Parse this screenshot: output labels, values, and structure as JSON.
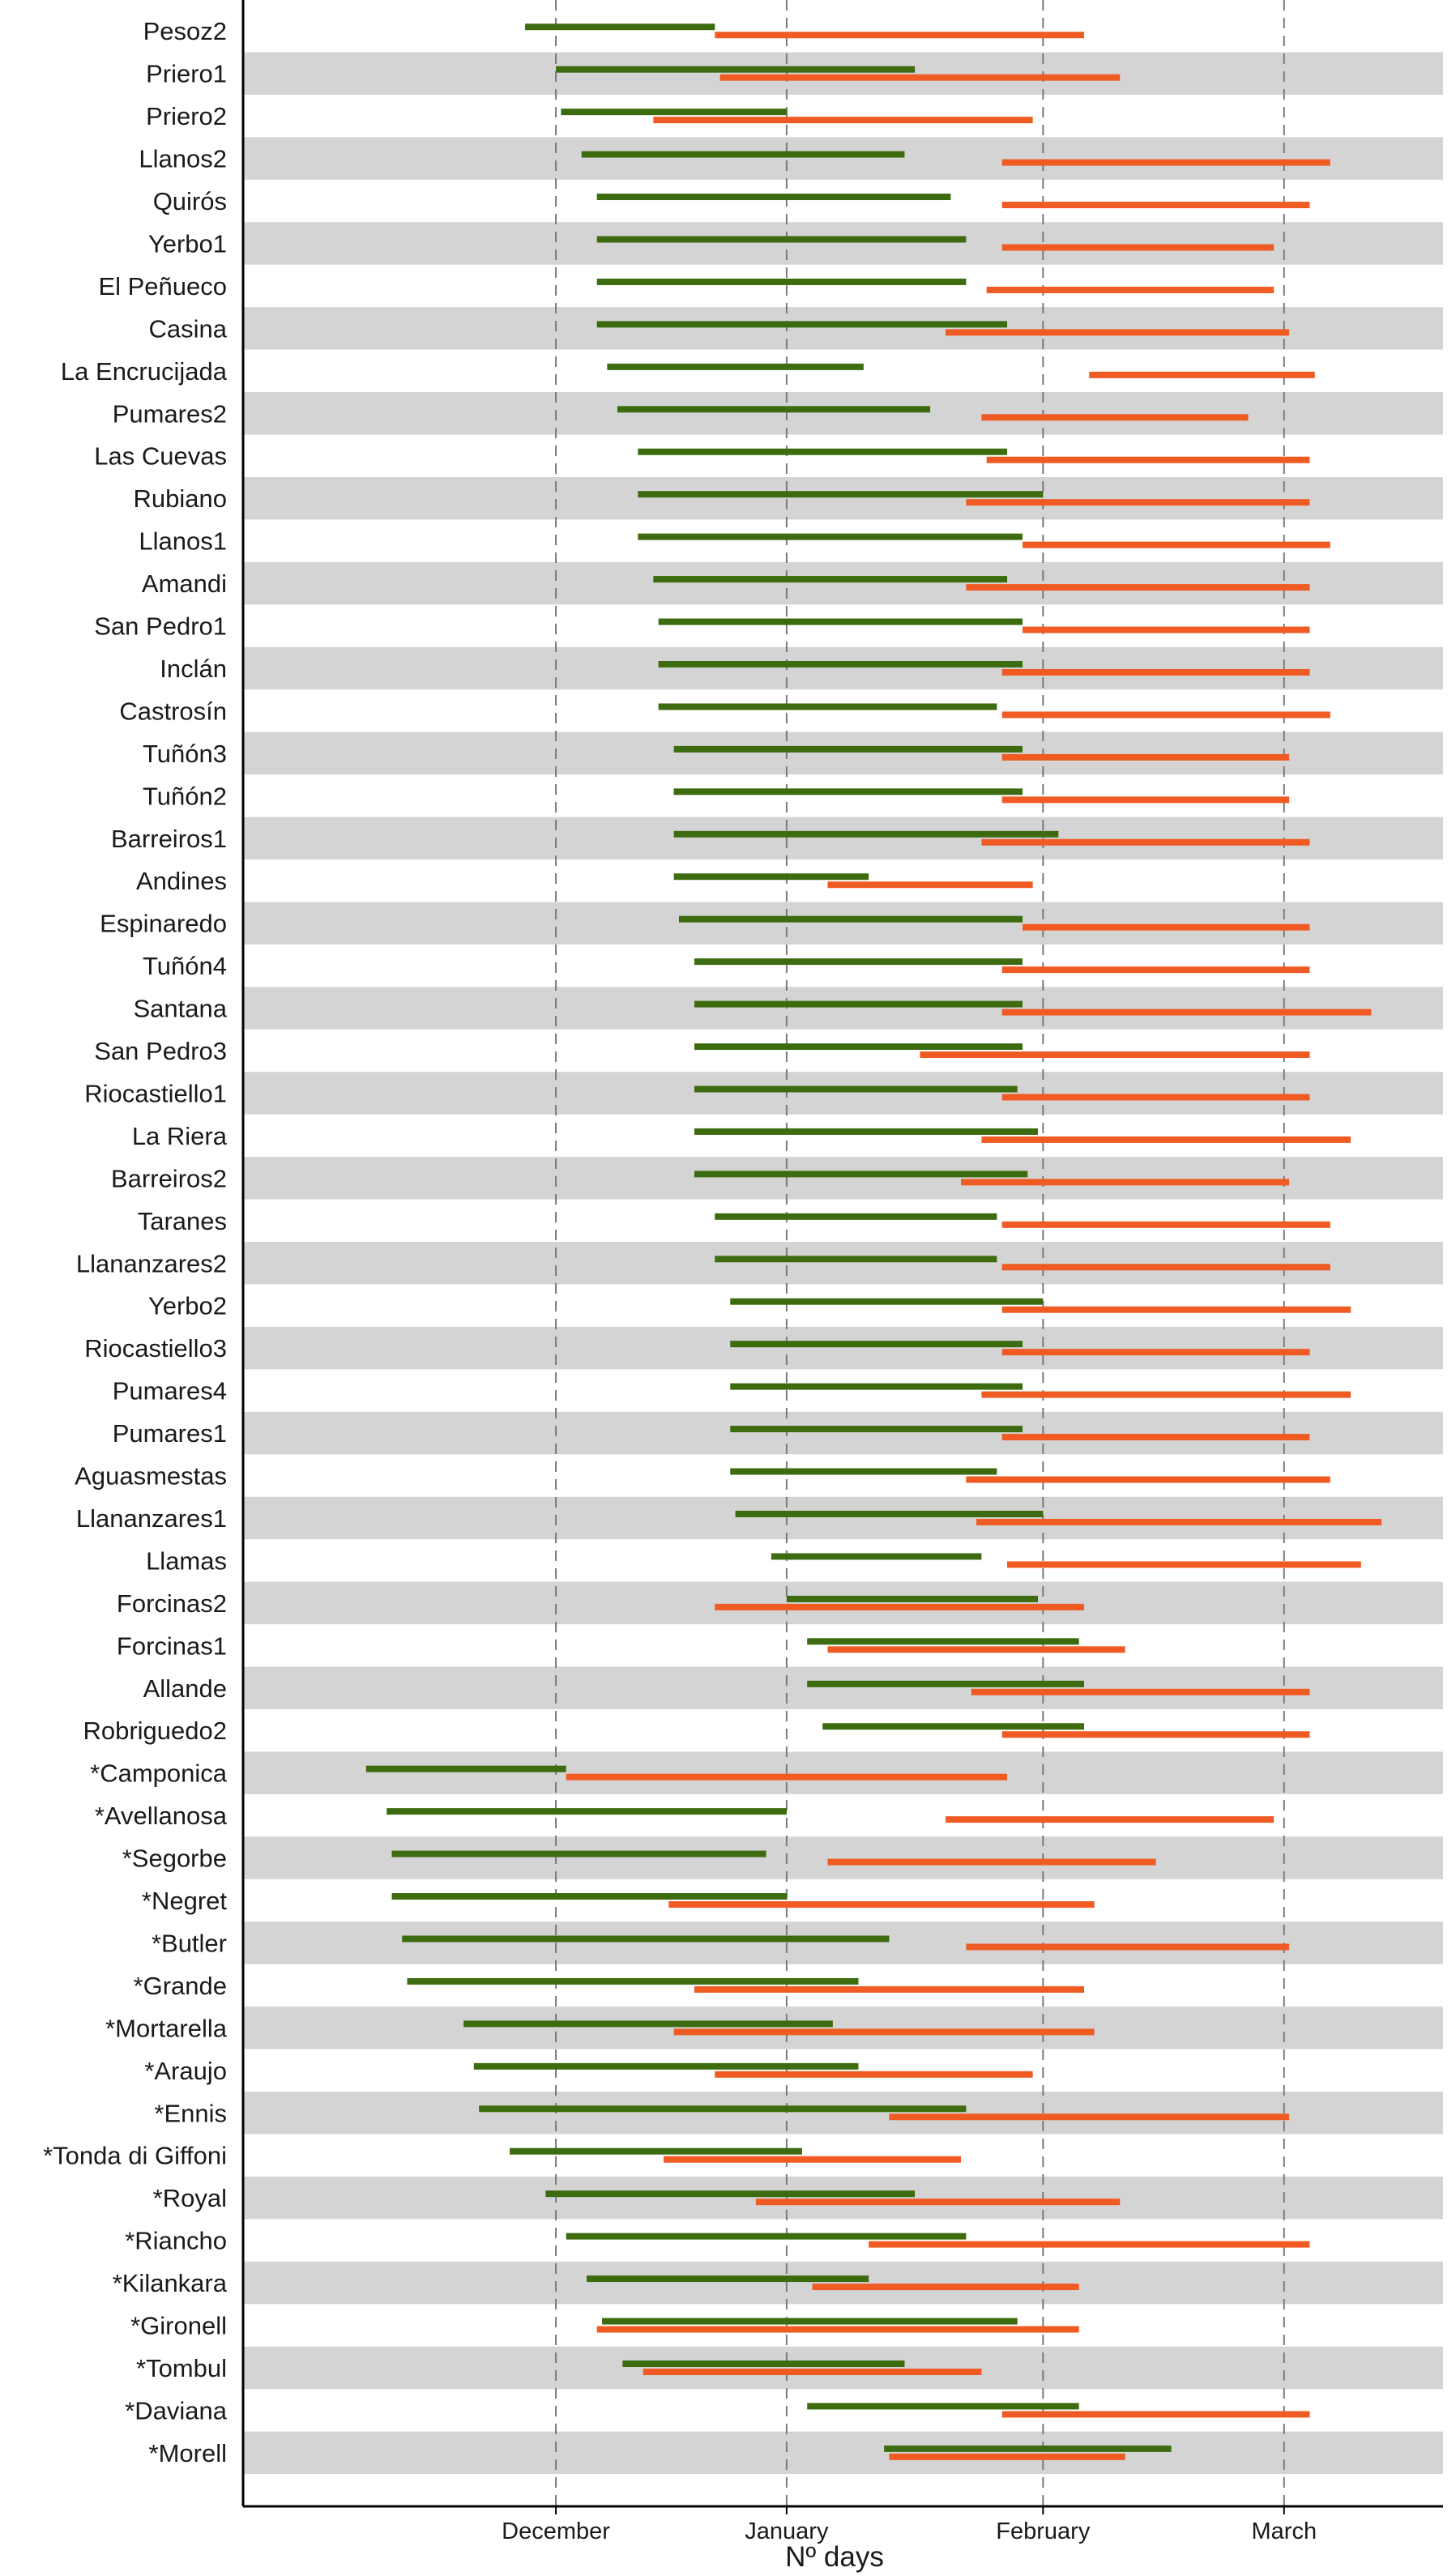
{
  "chart_data": {
    "type": "range-bar",
    "title": "",
    "xlabel": "Nº days",
    "ylabel": "",
    "xlim": [
      -31,
      203
    ],
    "x_unit": "days from 1 November",
    "grid": "vertical dashed at month ticks",
    "row_shading": "alternating grey bands",
    "ticks": [
      {
        "label": "December",
        "value": 30
      },
      {
        "label": "January",
        "value": 75
      },
      {
        "label": "February",
        "value": 125
      },
      {
        "label": "March",
        "value": 172
      }
    ],
    "series": [
      {
        "name": "green",
        "color": "#3d6b0f"
      },
      {
        "name": "orange",
        "color": "#f05a23"
      }
    ],
    "rows": [
      {
        "label": "Pesoz2",
        "green": [
          24,
          61
        ],
        "orange": [
          61,
          133
        ]
      },
      {
        "label": "Priero1",
        "green": [
          30,
          100
        ],
        "orange": [
          62,
          140
        ]
      },
      {
        "label": "Priero2",
        "green": [
          31,
          75
        ],
        "orange": [
          49,
          123
        ]
      },
      {
        "label": "Llanos2",
        "green": [
          35,
          98
        ],
        "orange": [
          117,
          181
        ]
      },
      {
        "label": "Quirós",
        "green": [
          38,
          107
        ],
        "orange": [
          117,
          177
        ]
      },
      {
        "label": "Yerbo1",
        "green": [
          38,
          110
        ],
        "orange": [
          117,
          170
        ]
      },
      {
        "label": "El Peñueco",
        "green": [
          38,
          110
        ],
        "orange": [
          114,
          170
        ]
      },
      {
        "label": "Casina",
        "green": [
          38,
          118
        ],
        "orange": [
          106,
          173
        ]
      },
      {
        "label": "La Encrucijada",
        "green": [
          40,
          90
        ],
        "orange": [
          134,
          178
        ]
      },
      {
        "label": "Pumares2",
        "green": [
          42,
          103
        ],
        "orange": [
          113,
          165
        ]
      },
      {
        "label": "Las Cuevas",
        "green": [
          46,
          118
        ],
        "orange": [
          114,
          177
        ]
      },
      {
        "label": "Rubiano",
        "green": [
          46,
          125
        ],
        "orange": [
          110,
          177
        ]
      },
      {
        "label": "Llanos1",
        "green": [
          46,
          121
        ],
        "orange": [
          121,
          181
        ]
      },
      {
        "label": "Amandi",
        "green": [
          49,
          118
        ],
        "orange": [
          110,
          177
        ]
      },
      {
        "label": "San Pedro1",
        "green": [
          50,
          121
        ],
        "orange": [
          121,
          177
        ]
      },
      {
        "label": "Inclán",
        "green": [
          50,
          121
        ],
        "orange": [
          117,
          177
        ]
      },
      {
        "label": "Castrosín",
        "green": [
          50,
          116
        ],
        "orange": [
          117,
          181
        ]
      },
      {
        "label": "Tuñón3",
        "green": [
          53,
          121
        ],
        "orange": [
          117,
          173
        ]
      },
      {
        "label": "Tuñón2",
        "green": [
          53,
          121
        ],
        "orange": [
          117,
          173
        ]
      },
      {
        "label": "Barreiros1",
        "green": [
          53,
          128
        ],
        "orange": [
          113,
          177
        ]
      },
      {
        "label": "Andines",
        "green": [
          53,
          91
        ],
        "orange": [
          83,
          123
        ]
      },
      {
        "label": "Espinaredo",
        "green": [
          54,
          121
        ],
        "orange": [
          121,
          177
        ]
      },
      {
        "label": "Tuñón4",
        "green": [
          57,
          121
        ],
        "orange": [
          117,
          177
        ]
      },
      {
        "label": "Santana",
        "green": [
          57,
          121
        ],
        "orange": [
          117,
          189
        ]
      },
      {
        "label": "San Pedro3",
        "green": [
          57,
          121
        ],
        "orange": [
          101,
          177
        ]
      },
      {
        "label": "Riocastiello1",
        "green": [
          57,
          120
        ],
        "orange": [
          117,
          177
        ]
      },
      {
        "label": "La Riera",
        "green": [
          57,
          124
        ],
        "orange": [
          113,
          185
        ]
      },
      {
        "label": "Barreiros2",
        "green": [
          57,
          122
        ],
        "orange": [
          109,
          173
        ]
      },
      {
        "label": "Taranes",
        "green": [
          61,
          116
        ],
        "orange": [
          117,
          181
        ]
      },
      {
        "label": "Llananzares2",
        "green": [
          61,
          116
        ],
        "orange": [
          117,
          181
        ]
      },
      {
        "label": "Yerbo2",
        "green": [
          64,
          125
        ],
        "orange": [
          117,
          185
        ]
      },
      {
        "label": "Riocastiello3",
        "green": [
          64,
          121
        ],
        "orange": [
          117,
          177
        ]
      },
      {
        "label": "Pumares4",
        "green": [
          64,
          121
        ],
        "orange": [
          113,
          185
        ]
      },
      {
        "label": "Pumares1",
        "green": [
          64,
          121
        ],
        "orange": [
          117,
          177
        ]
      },
      {
        "label": "Aguasmestas",
        "green": [
          64,
          116
        ],
        "orange": [
          110,
          181
        ]
      },
      {
        "label": "Llananzares1",
        "green": [
          65,
          125
        ],
        "orange": [
          112,
          191
        ]
      },
      {
        "label": "Llamas",
        "green": [
          72,
          113
        ],
        "orange": [
          118,
          187
        ]
      },
      {
        "label": "Forcinas2",
        "green": [
          75,
          124
        ],
        "orange": [
          61,
          133
        ]
      },
      {
        "label": "Forcinas1",
        "green": [
          79,
          132
        ],
        "orange": [
          83,
          141
        ]
      },
      {
        "label": "Allande",
        "green": [
          79,
          133
        ],
        "orange": [
          111,
          177
        ]
      },
      {
        "label": "Robriguedo2",
        "green": [
          82,
          133
        ],
        "orange": [
          117,
          177
        ]
      },
      {
        "label": "*Camponica",
        "green": [
          -7,
          32
        ],
        "orange": [
          32,
          118
        ]
      },
      {
        "label": "*Avellanosa",
        "green": [
          -3,
          75
        ],
        "orange": [
          106,
          170
        ]
      },
      {
        "label": "*Segorbe",
        "green": [
          -2,
          71
        ],
        "orange": [
          83,
          147
        ]
      },
      {
        "label": "*Negret",
        "green": [
          -2,
          75
        ],
        "orange": [
          52,
          135
        ]
      },
      {
        "label": "*Butler",
        "green": [
          0,
          95
        ],
        "orange": [
          110,
          173
        ]
      },
      {
        "label": "*Grande",
        "green": [
          1,
          89
        ],
        "orange": [
          57,
          133
        ]
      },
      {
        "label": "*Mortarella",
        "green": [
          12,
          84
        ],
        "orange": [
          53,
          135
        ]
      },
      {
        "label": "*Araujo",
        "green": [
          14,
          89
        ],
        "orange": [
          61,
          123
        ]
      },
      {
        "label": "*Ennis",
        "green": [
          15,
          110
        ],
        "orange": [
          95,
          173
        ]
      },
      {
        "label": "*Tonda di Giffoni",
        "green": [
          21,
          78
        ],
        "orange": [
          51,
          109
        ]
      },
      {
        "label": "*Royal",
        "green": [
          28,
          100
        ],
        "orange": [
          69,
          140
        ]
      },
      {
        "label": "*Riancho",
        "green": [
          32,
          110
        ],
        "orange": [
          91,
          177
        ]
      },
      {
        "label": "*Kilankara",
        "green": [
          36,
          91
        ],
        "orange": [
          80,
          132
        ]
      },
      {
        "label": "*Gironell",
        "green": [
          39,
          120
        ],
        "orange": [
          38,
          132
        ]
      },
      {
        "label": "*Tombul",
        "green": [
          43,
          98
        ],
        "orange": [
          47,
          113
        ]
      },
      {
        "label": "*Daviana",
        "green": [
          79,
          132
        ],
        "orange": [
          117,
          177
        ]
      },
      {
        "label": "*Morell",
        "green": [
          94,
          150
        ],
        "orange": [
          95,
          141
        ]
      }
    ]
  }
}
